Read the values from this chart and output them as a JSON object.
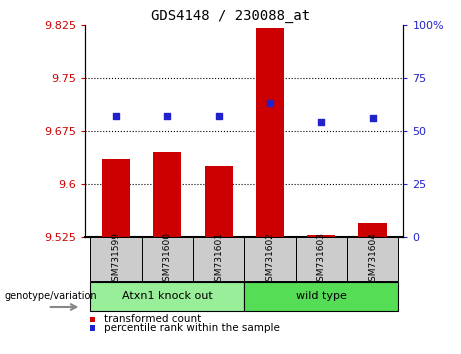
{
  "title": "GDS4148 / 230088_at",
  "samples": [
    "GSM731599",
    "GSM731600",
    "GSM731601",
    "GSM731602",
    "GSM731603",
    "GSM731604"
  ],
  "bar_values": [
    9.635,
    9.645,
    9.625,
    9.82,
    9.528,
    9.545
  ],
  "percentile_values": [
    57,
    57,
    57,
    63,
    54,
    56
  ],
  "ylim_left": [
    9.525,
    9.825
  ],
  "ylim_right": [
    0,
    100
  ],
  "yticks_left": [
    9.525,
    9.6,
    9.675,
    9.75,
    9.825
  ],
  "ytick_labels_left": [
    "9.525",
    "9.6",
    "9.675",
    "9.75",
    "9.825"
  ],
  "yticks_right": [
    0,
    25,
    50,
    75,
    100
  ],
  "ytick_labels_right": [
    "0",
    "25",
    "50",
    "75",
    "100%"
  ],
  "grid_values": [
    9.6,
    9.675,
    9.75
  ],
  "bar_color": "#cc0000",
  "dot_color": "#2222cc",
  "bar_bottom": 9.525,
  "groups": [
    {
      "label": "Atxn1 knock out",
      "start": 0,
      "end": 3,
      "color": "#99ee99"
    },
    {
      "label": "wild type",
      "start": 3,
      "end": 6,
      "color": "#55dd55"
    }
  ],
  "legend_items": [
    {
      "label": "transformed count",
      "color": "#cc0000"
    },
    {
      "label": "percentile rank within the sample",
      "color": "#2222cc"
    }
  ],
  "genotype_label": "genotype/variation",
  "tick_label_color_left": "#cc0000",
  "tick_label_color_right": "#2222cc",
  "background_xtick": "#cccccc",
  "bar_width": 0.55
}
